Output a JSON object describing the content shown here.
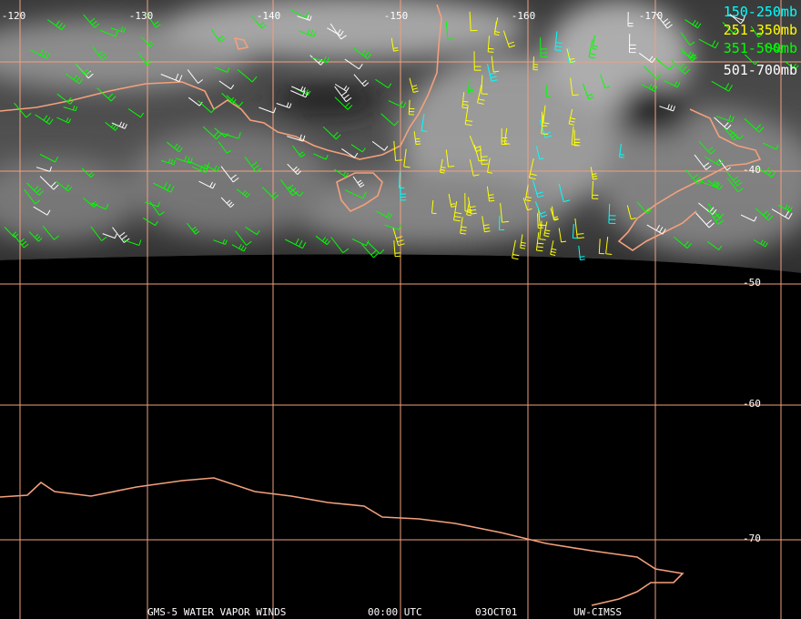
{
  "map": {
    "lon_labels": [
      "-120",
      "-130",
      "-140",
      "-150",
      "-160",
      "-170"
    ],
    "lat_labels": [
      "-40",
      "-50",
      "-60",
      "-70"
    ],
    "legend": [
      {
        "label": "150-250mb",
        "color": "#00ffff"
      },
      {
        "label": "251-350mb",
        "color": "#ffff00"
      },
      {
        "label": "351-500mb",
        "color": "#00ff00"
      },
      {
        "label": "501-700mb",
        "color": "#ffffff"
      }
    ],
    "footer": [
      "GMS-5 WATER VAPOR WINDS",
      "00:00 UTC",
      "03OCT01",
      "UW-CIMSS"
    ]
  }
}
